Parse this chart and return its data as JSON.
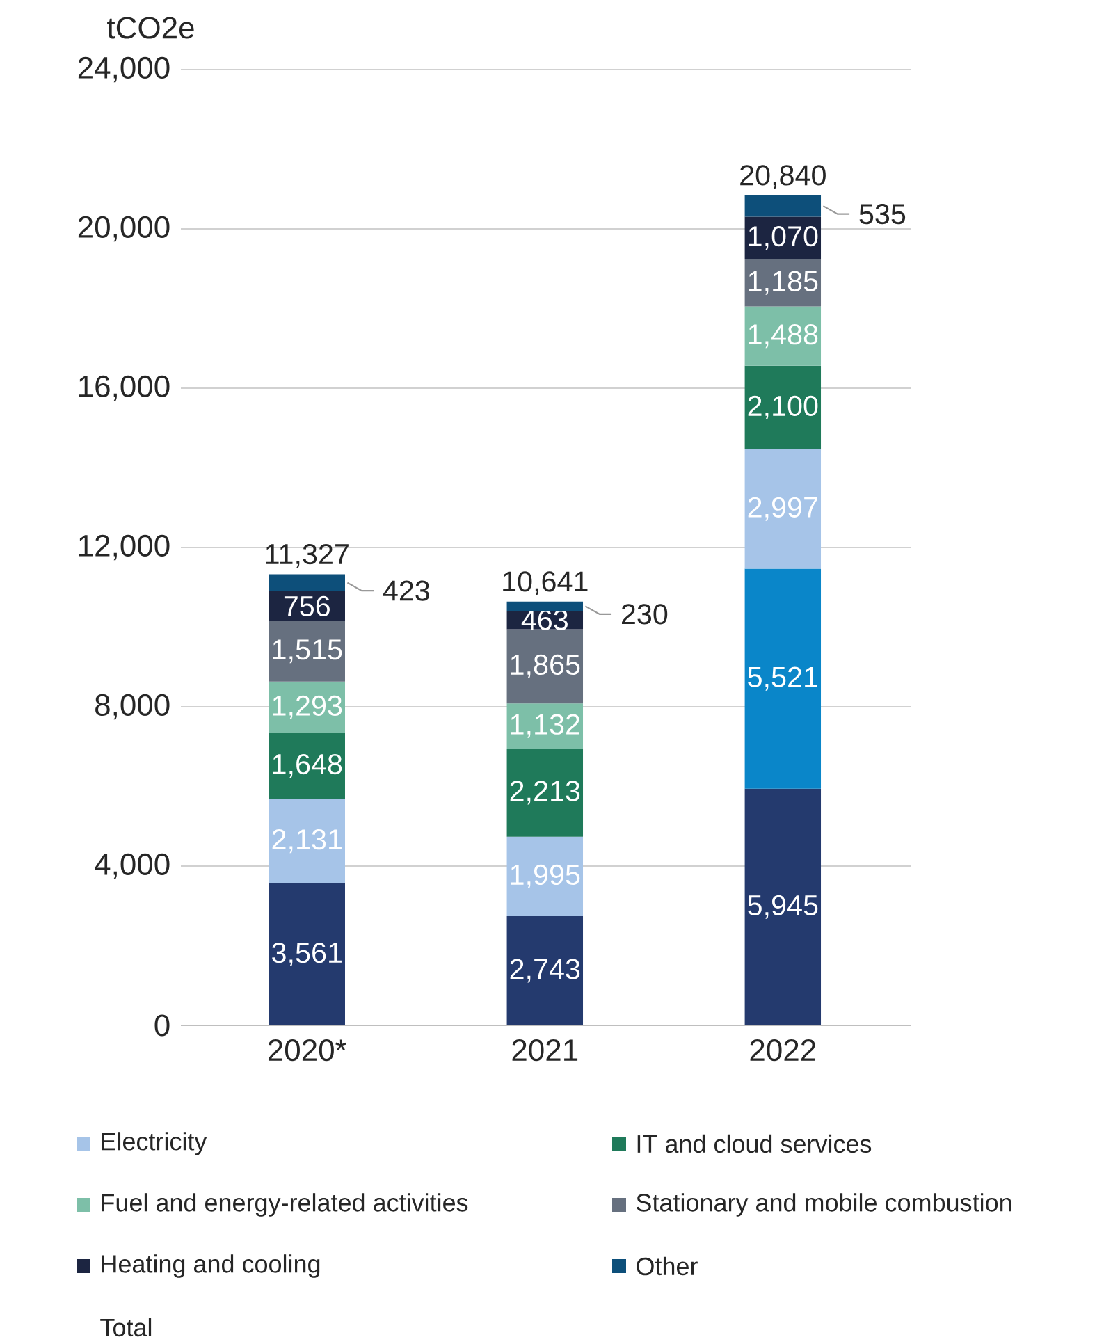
{
  "chart_data": {
    "type": "bar",
    "stacked": true,
    "ylabel": "tCO2e",
    "categories": [
      "2020*",
      "2021",
      "2022"
    ],
    "series": [
      {
        "color": "#243a6e",
        "values": [
          3561,
          2743,
          5945
        ],
        "value_labels": [
          "3,561",
          "2,743",
          "5,945"
        ]
      },
      {
        "color": "#0a86c9",
        "values": [
          null,
          null,
          5521
        ],
        "value_labels": [
          null,
          null,
          "5,521"
        ]
      },
      {
        "name": "Electricity",
        "color": "#a6c4e8",
        "values": [
          2131,
          1995,
          2997
        ],
        "value_labels": [
          "2,131",
          "1,995",
          "2,997"
        ]
      },
      {
        "name": "IT and cloud services",
        "color": "#1f7a5a",
        "values": [
          1648,
          2213,
          2100
        ],
        "value_labels": [
          "1,648",
          "2,213",
          "2,100"
        ]
      },
      {
        "name": "Fuel and energy-related activities",
        "color": "#7dbfa8",
        "values": [
          1293,
          1132,
          1488
        ],
        "value_labels": [
          "1,293",
          "1,132",
          "1,488"
        ]
      },
      {
        "name": "Stationary and mobile combustion",
        "color": "#66707f",
        "values": [
          1515,
          1865,
          1185
        ],
        "value_labels": [
          "1,515",
          "1,865",
          "1,185"
        ]
      },
      {
        "name": "Heating and cooling",
        "color": "#1c2541",
        "values": [
          756,
          463,
          1070
        ],
        "value_labels": [
          "756",
          "463",
          "1,070"
        ]
      },
      {
        "name": "Other",
        "color": "#0d4f7a",
        "values": [
          423,
          230,
          535
        ],
        "value_labels": [
          "423",
          "230",
          "535"
        ]
      }
    ],
    "totals": [
      "11,327",
      "10,641",
      "20,840"
    ],
    "ylim": [
      0,
      24000
    ],
    "yticks": [
      {
        "value": 0,
        "label": "0"
      },
      {
        "value": 4000,
        "label": "4,000"
      },
      {
        "value": 8000,
        "label": "8,000"
      },
      {
        "value": 12000,
        "label": "12,000"
      },
      {
        "value": 16000,
        "label": "16,000"
      },
      {
        "value": 20000,
        "label": "20,000"
      },
      {
        "value": 24000,
        "label": "24,000"
      }
    ],
    "grid": "y",
    "legend": "bottom",
    "annotations": [
      "Total"
    ]
  }
}
